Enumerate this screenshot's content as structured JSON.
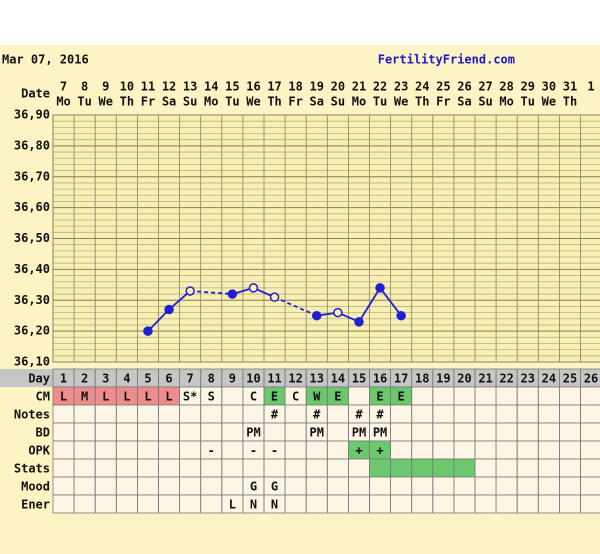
{
  "chart_data": {
    "type": "line",
    "header": {
      "date": "Mar 07, 2016",
      "site": "FertilityFriend.com"
    },
    "date_label": "Date",
    "dates": [
      "7",
      "8",
      "9",
      "10",
      "11",
      "12",
      "13",
      "14",
      "15",
      "16",
      "17",
      "18",
      "19",
      "20",
      "21",
      "22",
      "23",
      "24",
      "25",
      "26",
      "27",
      "28",
      "29",
      "30",
      "31",
      "1"
    ],
    "weekdays": [
      "Mo",
      "Tu",
      "We",
      "Th",
      "Fr",
      "Sa",
      "Su",
      "Mo",
      "Tu",
      "We",
      "Th",
      "Fr",
      "Sa",
      "Su",
      "Mo",
      "Tu",
      "We",
      "Th",
      "Fr",
      "Sa",
      "Su",
      "Mo",
      "Tu",
      "We",
      "Th",
      null
    ],
    "ylim": [
      36.1,
      36.9
    ],
    "yticks": [
      {
        "value": 36.1,
        "label": "36,10"
      },
      {
        "value": 36.2,
        "label": "36,20"
      },
      {
        "value": 36.3,
        "label": "36,30"
      },
      {
        "value": 36.4,
        "label": "36,40"
      },
      {
        "value": 36.5,
        "label": "36,50"
      },
      {
        "value": 36.6,
        "label": "36,60"
      },
      {
        "value": 36.7,
        "label": "36,70"
      },
      {
        "value": 36.8,
        "label": "36,80"
      },
      {
        "value": 36.9,
        "label": "36,90"
      }
    ],
    "series": [
      {
        "name": "Temperature",
        "color": "#2020d0",
        "values": [
          null,
          null,
          null,
          null,
          36.2,
          36.27,
          36.33,
          null,
          36.32,
          36.34,
          36.31,
          null,
          36.25,
          36.26,
          36.23,
          36.34,
          36.25,
          null,
          null,
          null,
          null,
          null,
          null,
          null,
          null,
          null
        ],
        "open_markers": [
          false,
          false,
          false,
          false,
          false,
          false,
          true,
          false,
          false,
          true,
          true,
          false,
          false,
          true,
          false,
          false,
          false,
          false,
          false,
          false,
          false,
          false,
          false,
          false,
          false,
          false
        ]
      }
    ],
    "rows": [
      {
        "label": "Day",
        "cells": [
          "1",
          "2",
          "3",
          "4",
          "5",
          "6",
          "7",
          "8",
          "9",
          "10",
          "11",
          "12",
          "13",
          "14",
          "15",
          "16",
          "17",
          "18",
          "19",
          "20",
          "21",
          "22",
          "23",
          "24",
          "25",
          "26"
        ],
        "fills": []
      },
      {
        "label": "CM",
        "cells": [
          "L",
          "M",
          "L",
          "L",
          "L",
          "L",
          "S*",
          "S",
          null,
          "C",
          "E",
          "C",
          "W",
          "E",
          null,
          "E",
          "E",
          null,
          null,
          null,
          null,
          null,
          null,
          null,
          null,
          null
        ],
        "fills": [
          "#f08c8c",
          "#f08c8c",
          "#f08c8c",
          "#f08c8c",
          "#f08c8c",
          "#f08c8c",
          null,
          null,
          null,
          null,
          "#6cc86c",
          null,
          "#6cc86c",
          "#6cc86c",
          null,
          "#6cc86c",
          "#6cc86c"
        ]
      },
      {
        "label": "Notes",
        "cells": [
          null,
          null,
          null,
          null,
          null,
          null,
          null,
          null,
          null,
          null,
          "#",
          null,
          "#",
          null,
          "#",
          "#",
          null,
          null,
          null,
          null,
          null,
          null,
          null,
          null,
          null,
          null
        ],
        "fills": []
      },
      {
        "label": "BD",
        "cells": [
          null,
          null,
          null,
          null,
          null,
          null,
          null,
          null,
          null,
          "PM",
          null,
          null,
          "PM",
          null,
          "PM",
          "PM",
          null,
          null,
          null,
          null,
          null,
          null,
          null,
          null,
          null,
          null
        ],
        "fills": []
      },
      {
        "label": "OPK",
        "cells": [
          null,
          null,
          null,
          null,
          null,
          null,
          null,
          "-",
          null,
          "-",
          "-",
          null,
          null,
          null,
          "+",
          "+",
          null,
          null,
          null,
          null,
          null,
          null,
          null,
          null,
          null,
          null
        ],
        "fills": [
          null,
          null,
          null,
          null,
          null,
          null,
          null,
          null,
          null,
          null,
          null,
          null,
          null,
          null,
          "#6cc86c",
          "#6cc86c"
        ]
      },
      {
        "label": "Stats",
        "cells": [],
        "fills": [
          null,
          null,
          null,
          null,
          null,
          null,
          null,
          null,
          null,
          null,
          null,
          null,
          null,
          null,
          null,
          "#6cc86c",
          "#6cc86c",
          "#6cc86c",
          "#6cc86c",
          "#6cc86c"
        ]
      },
      {
        "label": "Mood",
        "cells": [
          null,
          null,
          null,
          null,
          null,
          null,
          null,
          null,
          null,
          "G",
          "G",
          null,
          null,
          null,
          null,
          null,
          null,
          null,
          null,
          null,
          null,
          null,
          null,
          null,
          null,
          null
        ],
        "fills": []
      },
      {
        "label": "Ener",
        "cells": [
          null,
          null,
          null,
          null,
          null,
          null,
          null,
          null,
          "L",
          "N",
          "N",
          null,
          null,
          null,
          null,
          null,
          null,
          null,
          null,
          null,
          null,
          null,
          null,
          null,
          null,
          null
        ],
        "fills": []
      }
    ]
  }
}
